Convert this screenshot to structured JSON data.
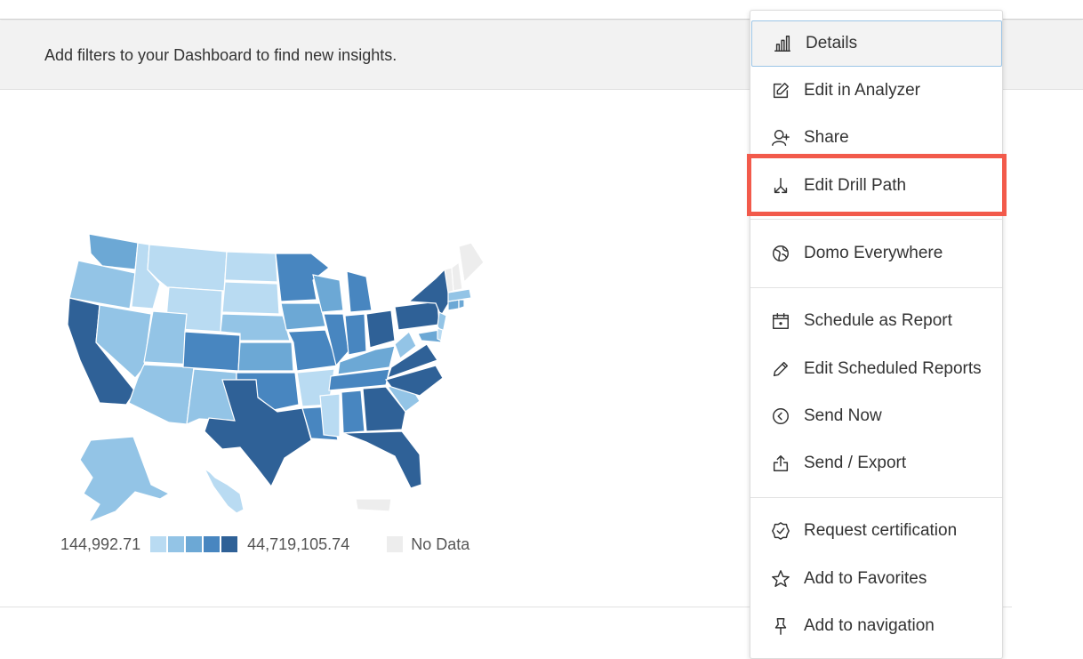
{
  "filter_bar": {
    "message": "Add filters to your Dashboard to find new insights."
  },
  "map": {
    "legend": {
      "min_label": "144,992.71",
      "max_label": "44,719,105.74",
      "no_data_label": "No Data",
      "colors": [
        "#b9dbf2",
        "#93c4e6",
        "#6ca8d5",
        "#4886c0",
        "#2f6197"
      ],
      "no_data_color": "#ededed"
    }
  },
  "menu": {
    "items": [
      {
        "label": "Details",
        "icon": "bar-chart-icon"
      },
      {
        "label": "Edit in Analyzer",
        "icon": "edit-square-icon"
      },
      {
        "label": "Share",
        "icon": "add-user-icon"
      },
      {
        "label": "Edit Drill Path",
        "icon": "drill-path-icon"
      },
      {
        "label": "Domo Everywhere",
        "icon": "globe-icon"
      },
      {
        "label": "Schedule as Report",
        "icon": "calendar-icon"
      },
      {
        "label": "Edit Scheduled Reports",
        "icon": "pencil-icon"
      },
      {
        "label": "Send Now",
        "icon": "circle-chevron-left-icon"
      },
      {
        "label": "Send / Export",
        "icon": "export-icon"
      },
      {
        "label": "Request certification",
        "icon": "certified-badge-icon"
      },
      {
        "label": "Add to Favorites",
        "icon": "star-icon"
      },
      {
        "label": "Add to navigation",
        "icon": "pin-icon"
      }
    ],
    "highlighted_item": "Edit Drill Path"
  }
}
